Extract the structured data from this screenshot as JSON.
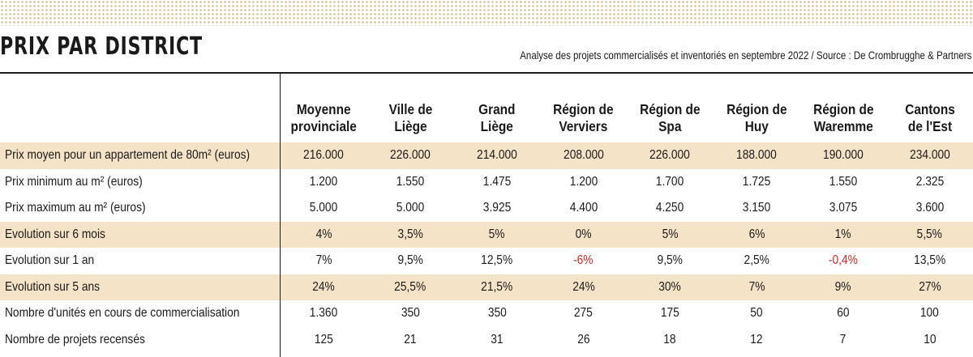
{
  "chart_data": {
    "type": "table",
    "title": "PRIX PAR DISTRICT",
    "subtitle": "Analyse des projets commercialisés et inventoriés en septembre 2022 / Source : De Crombrugghe & Partners",
    "columns": [
      [
        "Moyenne",
        "provinciale"
      ],
      [
        "Ville de",
        "Liège"
      ],
      [
        "Grand",
        "Liège"
      ],
      [
        "Région de",
        "Verviers"
      ],
      [
        "Région de",
        "Spa"
      ],
      [
        "Région de",
        "Huy"
      ],
      [
        "Région de",
        "Waremme"
      ],
      [
        "Cantons",
        "de l'Est"
      ]
    ],
    "rows": [
      {
        "label": "Prix moyen pour un appartement de 80m² (euros)",
        "shaded": true,
        "values": [
          "216.000",
          "226.000",
          "214.000",
          "208.000",
          "226.000",
          "188.000",
          "190.000",
          "234.000"
        ]
      },
      {
        "label": "Prix minimum au m² (euros)",
        "shaded": false,
        "values": [
          "1.200",
          "1.550",
          "1.475",
          "1.200",
          "1.700",
          "1.725",
          "1.550",
          "2.325"
        ]
      },
      {
        "label": "Prix maximum au m² (euros)",
        "shaded": false,
        "values": [
          "5.000",
          "5.000",
          "3.925",
          "4.400",
          "4.250",
          "3.150",
          "3.075",
          "3.600"
        ]
      },
      {
        "label": "Evolution sur 6 mois",
        "shaded": true,
        "values": [
          "4%",
          "3,5%",
          "5%",
          "0%",
          "5%",
          "6%",
          "1%",
          "5,5%"
        ]
      },
      {
        "label": "Evolution sur 1 an",
        "shaded": false,
        "values": [
          "7%",
          "9,5%",
          "12,5%",
          "-6%",
          "9,5%",
          "2,5%",
          "-0,4%",
          "13,5%"
        ]
      },
      {
        "label": "Evolution sur 5 ans",
        "shaded": true,
        "values": [
          "24%",
          "25,5%",
          "21,5%",
          "24%",
          "30%",
          "7%",
          "9%",
          "27%"
        ]
      },
      {
        "label": "Nombre d'unités en cours de commercialisation",
        "shaded": false,
        "values": [
          "1.360",
          "350",
          "350",
          "275",
          "175",
          "50",
          "60",
          "100"
        ]
      },
      {
        "label": "Nombre de projets recensés",
        "shaded": false,
        "values": [
          "125",
          "21",
          "31",
          "26",
          "18",
          "12",
          "7",
          "10"
        ]
      }
    ]
  },
  "colors": {
    "shade": "#f5e3c8",
    "negative": "#d9261c",
    "dots": "#d9bf8a"
  }
}
